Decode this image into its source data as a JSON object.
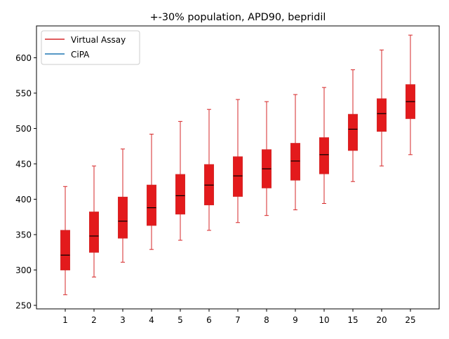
{
  "chart_data": {
    "type": "box",
    "title": "+-30% population, APD90, bepridil",
    "xlabel": "",
    "ylabel": "",
    "categories": [
      "1",
      "2",
      "3",
      "4",
      "5",
      "6",
      "7",
      "8",
      "9",
      "10",
      "15",
      "20",
      "25"
    ],
    "ylim": [
      245,
      645
    ],
    "yticks": [
      250,
      300,
      350,
      400,
      450,
      500,
      550,
      600
    ],
    "legend": {
      "placement": "top-left",
      "entries": [
        {
          "label": "Virtual Assay",
          "color": "#d62728"
        },
        {
          "label": "CiPA",
          "color": "#1f77b4"
        }
      ]
    },
    "series": [
      {
        "name": "Virtual Assay",
        "color": "#d62728",
        "fill": "#e31a1c",
        "boxes": [
          {
            "whisker_low": 265,
            "q1": 300,
            "median": 321,
            "q3": 356,
            "whisker_high": 418
          },
          {
            "whisker_low": 290,
            "q1": 325,
            "median": 348,
            "q3": 382,
            "whisker_high": 447
          },
          {
            "whisker_low": 311,
            "q1": 345,
            "median": 369,
            "q3": 403,
            "whisker_high": 471
          },
          {
            "whisker_low": 329,
            "q1": 363,
            "median": 388,
            "q3": 420,
            "whisker_high": 492
          },
          {
            "whisker_low": 342,
            "q1": 379,
            "median": 405,
            "q3": 435,
            "whisker_high": 510
          },
          {
            "whisker_low": 356,
            "q1": 392,
            "median": 420,
            "q3": 449,
            "whisker_high": 527
          },
          {
            "whisker_low": 367,
            "q1": 404,
            "median": 433,
            "q3": 460,
            "whisker_high": 541
          },
          {
            "whisker_low": 377,
            "q1": 416,
            "median": 443,
            "q3": 470,
            "whisker_high": 538
          },
          {
            "whisker_low": 385,
            "q1": 427,
            "median": 454,
            "q3": 479,
            "whisker_high": 548
          },
          {
            "whisker_low": 394,
            "q1": 436,
            "median": 463,
            "q3": 487,
            "whisker_high": 558
          },
          {
            "whisker_low": 425,
            "q1": 469,
            "median": 499,
            "q3": 520,
            "whisker_high": 583
          },
          {
            "whisker_low": 447,
            "q1": 496,
            "median": 521,
            "q3": 542,
            "whisker_high": 611
          },
          {
            "whisker_low": 463,
            "q1": 514,
            "median": 538,
            "q3": 562,
            "whisker_high": 632
          }
        ]
      },
      {
        "name": "CiPA",
        "color": "#1f77b4",
        "boxes": []
      }
    ]
  }
}
